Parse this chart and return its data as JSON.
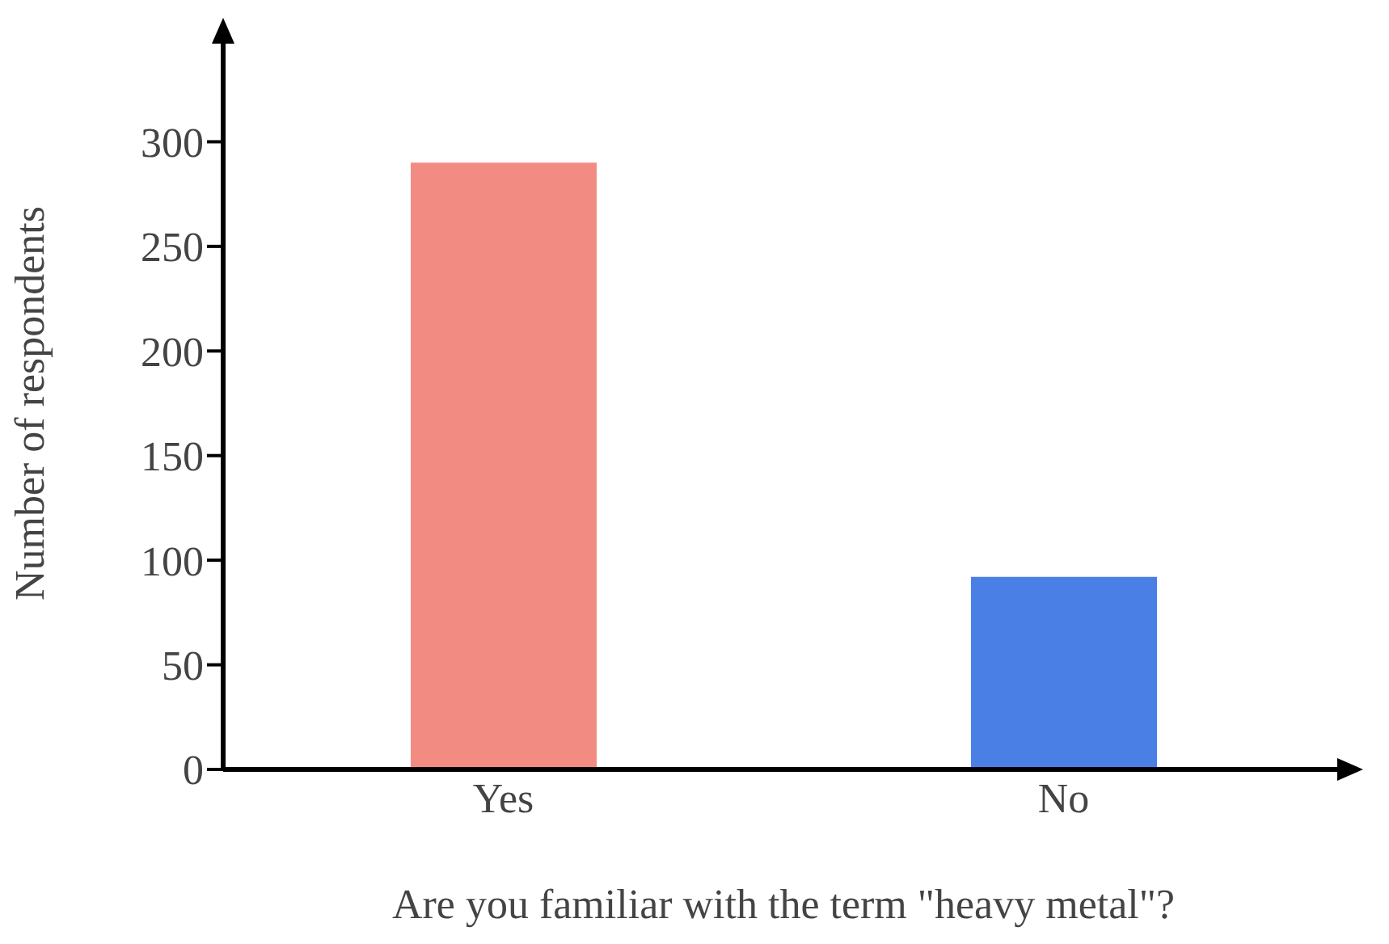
{
  "chart_data": {
    "type": "bar",
    "xlabel": "Are you familiar with the term \"heavy metal\"?",
    "ylabel": "Number of respondents",
    "categories": [
      "Yes",
      "No"
    ],
    "values": [
      290,
      92
    ],
    "colors": [
      "#f28b82",
      "#4a7fe6"
    ],
    "ylim": [
      0,
      350
    ],
    "yticks": [
      0,
      50,
      100,
      150,
      200,
      250,
      300
    ]
  }
}
